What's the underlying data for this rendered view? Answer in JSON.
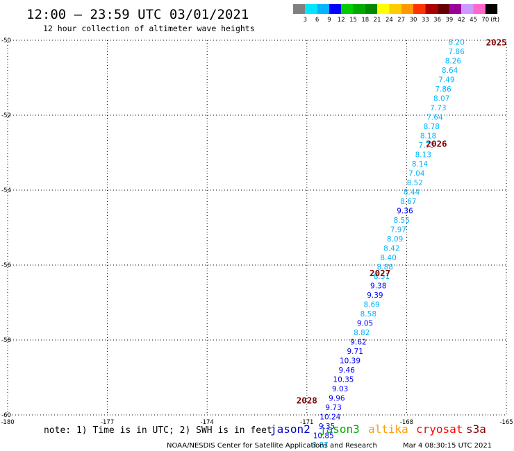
{
  "header": {
    "title": "12:00 – 23:59 UTC 03/01/2021",
    "subtitle": "12 hour collection of altimeter wave heights"
  },
  "color_scale": {
    "labels": [
      "3",
      "6",
      "9",
      "12",
      "15",
      "18",
      "21",
      "24",
      "27",
      "30",
      "33",
      "36",
      "39",
      "42",
      "45",
      "70"
    ],
    "unit": "(ft)",
    "colors": [
      "#808080",
      "#00e5ff",
      "#00b4ff",
      "#0000ff",
      "#00cc00",
      "#00aa00",
      "#008800",
      "#ffff00",
      "#ffcc00",
      "#ff9900",
      "#ff3300",
      "#aa0000",
      "#660000",
      "#990099",
      "#cc99ff",
      "#ff66cc",
      "#000000"
    ]
  },
  "footer": {
    "note": "note: 1) Time is in UTC; 2) SWH is in feet",
    "credit": "NOAA/NESDIS Center for Satellite Applications and Research",
    "timestamp": "Mar  4 08:30:15 UTC 2021",
    "satellites": [
      {
        "name": "jason2",
        "color": "#0000cc"
      },
      {
        "name": "jason3",
        "color": "#00aa00"
      },
      {
        "name": "altika",
        "color": "#ff9900"
      },
      {
        "name": "cryosat",
        "color": "#ff0000"
      },
      {
        "name": "s3a",
        "color": "#800000"
      }
    ]
  },
  "chart_data": {
    "type": "scatter",
    "xlim": [
      -180,
      -165
    ],
    "ylim": [
      -60,
      -50
    ],
    "x_ticks": [
      "-180",
      "-177",
      "-174",
      "-171",
      "-168",
      "-165"
    ],
    "x_tick_values": [
      -180,
      -177,
      -174,
      -171,
      -168,
      -165
    ],
    "y_ticks": [
      "-50",
      "-52",
      "-54",
      "-56",
      "-58",
      "-60"
    ],
    "y_tick_values": [
      -50,
      -52,
      -54,
      -56,
      -58,
      -60
    ],
    "grid": true,
    "pass_labels": [
      {
        "text": "2025",
        "lon": -165.3,
        "lat": -50.05
      },
      {
        "text": "2026",
        "lon": -167.1,
        "lat": -52.75
      },
      {
        "text": "2027",
        "lon": -168.8,
        "lat": -56.2
      },
      {
        "text": "2028",
        "lon": -171.0,
        "lat": -59.6
      }
    ],
    "points": [
      {
        "v": "8.20",
        "lon": -166.5,
        "lat": -50.05,
        "c": "#00b4ff"
      },
      {
        "v": "7.86",
        "lon": -166.5,
        "lat": -50.3,
        "c": "#00b4ff"
      },
      {
        "v": "8.26",
        "lon": -166.6,
        "lat": -50.55,
        "c": "#00b4ff"
      },
      {
        "v": "8.64",
        "lon": -166.7,
        "lat": -50.8,
        "c": "#00b4ff"
      },
      {
        "v": "7.49",
        "lon": -166.8,
        "lat": -51.05,
        "c": "#00b4ff"
      },
      {
        "v": "7.86",
        "lon": -166.9,
        "lat": -51.3,
        "c": "#00b4ff"
      },
      {
        "v": "8.07",
        "lon": -166.95,
        "lat": -51.55,
        "c": "#00b4ff"
      },
      {
        "v": "7.73",
        "lon": -167.05,
        "lat": -51.8,
        "c": "#00b4ff"
      },
      {
        "v": "7.64",
        "lon": -167.15,
        "lat": -52.05,
        "c": "#00b4ff"
      },
      {
        "v": "8.78",
        "lon": -167.25,
        "lat": -52.3,
        "c": "#00b4ff"
      },
      {
        "v": "8.18",
        "lon": -167.35,
        "lat": -52.55,
        "c": "#00b4ff"
      },
      {
        "v": "7.75",
        "lon": -167.4,
        "lat": -52.8,
        "c": "#00b4ff"
      },
      {
        "v": "8.13",
        "lon": -167.5,
        "lat": -53.05,
        "c": "#00b4ff"
      },
      {
        "v": "8.14",
        "lon": -167.6,
        "lat": -53.3,
        "c": "#00b4ff"
      },
      {
        "v": "7.04",
        "lon": -167.7,
        "lat": -53.55,
        "c": "#00b4ff"
      },
      {
        "v": "8.52",
        "lon": -167.75,
        "lat": -53.8,
        "c": "#00b4ff"
      },
      {
        "v": "8.44",
        "lon": -167.85,
        "lat": -54.05,
        "c": "#00b4ff"
      },
      {
        "v": "8.67",
        "lon": -167.95,
        "lat": -54.3,
        "c": "#00b4ff"
      },
      {
        "v": "9.36",
        "lon": -168.05,
        "lat": -54.55,
        "c": "#0000ff"
      },
      {
        "v": "8.55",
        "lon": -168.15,
        "lat": -54.8,
        "c": "#00b4ff"
      },
      {
        "v": "7.97",
        "lon": -168.25,
        "lat": -55.05,
        "c": "#00b4ff"
      },
      {
        "v": "8.09",
        "lon": -168.35,
        "lat": -55.3,
        "c": "#00b4ff"
      },
      {
        "v": "8.42",
        "lon": -168.45,
        "lat": -55.55,
        "c": "#00b4ff"
      },
      {
        "v": "8.40",
        "lon": -168.55,
        "lat": -55.8,
        "c": "#00b4ff"
      },
      {
        "v": "8.88",
        "lon": -168.65,
        "lat": -56.05,
        "c": "#00b4ff"
      },
      {
        "v": "8.51",
        "lon": -168.75,
        "lat": -56.3,
        "c": "#00b4ff"
      },
      {
        "v": "9.38",
        "lon": -168.85,
        "lat": -56.55,
        "c": "#0000ff"
      },
      {
        "v": "9.39",
        "lon": -168.95,
        "lat": -56.8,
        "c": "#0000ff"
      },
      {
        "v": "8.69",
        "lon": -169.05,
        "lat": -57.05,
        "c": "#00b4ff"
      },
      {
        "v": "8.58",
        "lon": -169.15,
        "lat": -57.3,
        "c": "#00b4ff"
      },
      {
        "v": "9.05",
        "lon": -169.25,
        "lat": -57.55,
        "c": "#0000ff"
      },
      {
        "v": "8.82",
        "lon": -169.35,
        "lat": -57.8,
        "c": "#00b4ff"
      },
      {
        "v": "9.62",
        "lon": -169.45,
        "lat": -58.05,
        "c": "#0000ff"
      },
      {
        "v": "9.71",
        "lon": -169.55,
        "lat": -58.3,
        "c": "#0000ff"
      },
      {
        "v": "10.39",
        "lon": -169.7,
        "lat": -58.55,
        "c": "#0000ff"
      },
      {
        "v": "9.46",
        "lon": -169.8,
        "lat": -58.8,
        "c": "#0000ff"
      },
      {
        "v": "10.35",
        "lon": -169.9,
        "lat": -59.05,
        "c": "#0000ff"
      },
      {
        "v": "9.03",
        "lon": -170.0,
        "lat": -59.3,
        "c": "#0000ff"
      },
      {
        "v": "9.96",
        "lon": -170.1,
        "lat": -59.55,
        "c": "#0000ff"
      },
      {
        "v": "9.73",
        "lon": -170.2,
        "lat": -59.8,
        "c": "#0000ff"
      },
      {
        "v": "10.24",
        "lon": -170.3,
        "lat": -60.05,
        "c": "#0000ff"
      },
      {
        "v": "9.35",
        "lon": -170.4,
        "lat": -60.3,
        "c": "#0000ff"
      },
      {
        "v": "10.85",
        "lon": -170.5,
        "lat": -60.55,
        "c": "#0000ff"
      },
      {
        "v": "8.87",
        "lon": -170.6,
        "lat": -60.8,
        "c": "#00b4ff"
      }
    ]
  }
}
